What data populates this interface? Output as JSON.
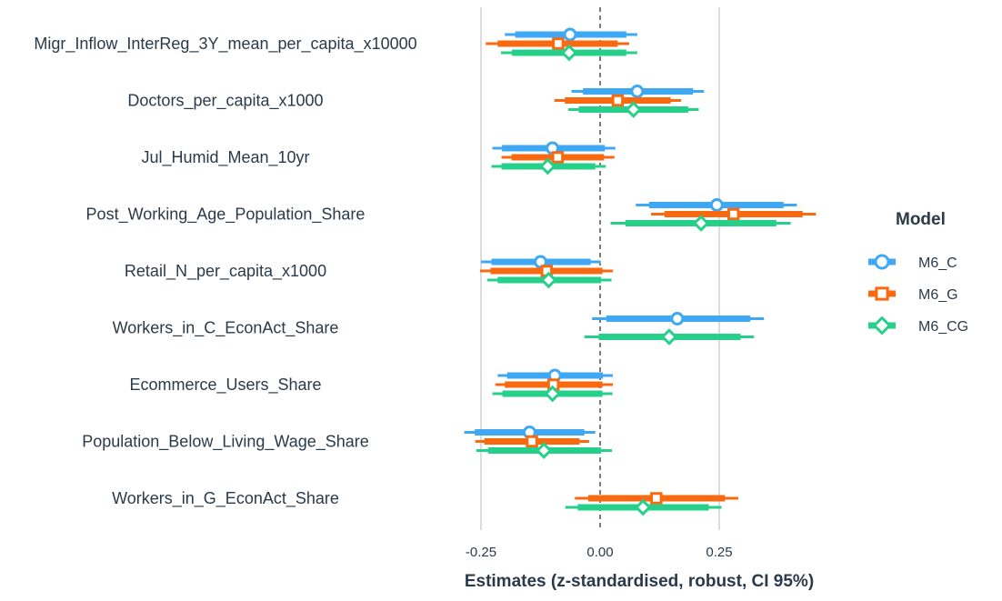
{
  "chart_data": {
    "type": "forest",
    "xlabel": "Estimates (z-standardised, robust, CI 95%)",
    "xticks": [
      -0.25,
      0,
      0.25
    ],
    "xtick_labels": [
      "-0.25",
      "0.00",
      "0.25"
    ],
    "xlim": [
      -0.3,
      0.48
    ],
    "gridlines": [
      -0.25,
      0.25
    ],
    "zero_line": 0,
    "legend": {
      "title": "Model",
      "position": "right"
    },
    "terms": [
      "Migr_Inflow_InterReg_3Y_mean_per_capita_x10000",
      "Doctors_per_capita_x1000",
      "Jul_Humid_Mean_10yr",
      "Post_Working_Age_Population_Share",
      "Retail_N_per_capita_x1000",
      "Workers_in_C_EconAct_Share",
      "Ecommerce_Users_Share",
      "Population_Below_Living_Wage_Share",
      "Workers_in_G_EconAct_Share"
    ],
    "series": [
      {
        "name": "M6_C",
        "color": "#3fa8f4",
        "marker": "circle",
        "points": [
          {
            "term": "Migr_Inflow_InterReg_3Y_mean_per_capita_x10000",
            "estimate": -0.063,
            "ci_inner": [
              -0.178,
              0.055
            ],
            "ci_outer": [
              -0.2,
              0.078
            ]
          },
          {
            "term": "Doctors_per_capita_x1000",
            "estimate": 0.078,
            "ci_inner": [
              -0.036,
              0.195
            ],
            "ci_outer": [
              -0.06,
              0.218
            ]
          },
          {
            "term": "Jul_Humid_Mean_10yr",
            "estimate": -0.1,
            "ci_inner": [
              -0.206,
              0.01
            ],
            "ci_outer": [
              -0.226,
              0.032
            ]
          },
          {
            "term": "Post_Working_Age_Population_Share",
            "estimate": 0.245,
            "ci_inner": [
              0.103,
              0.385
            ],
            "ci_outer": [
              0.075,
              0.413
            ]
          },
          {
            "term": "Retail_N_per_capita_x1000",
            "estimate": -0.125,
            "ci_inner": [
              -0.228,
              -0.02
            ],
            "ci_outer": [
              -0.25,
              0.001
            ]
          },
          {
            "term": "Workers_in_C_EconAct_Share",
            "estimate": 0.162,
            "ci_inner": [
              0.013,
              0.315
            ],
            "ci_outer": [
              -0.017,
              0.344
            ]
          },
          {
            "term": "Ecommerce_Users_Share",
            "estimate": -0.095,
            "ci_inner": [
              -0.195,
              0.006
            ],
            "ci_outer": [
              -0.215,
              0.027
            ]
          },
          {
            "term": "Population_Below_Living_Wage_Share",
            "estimate": -0.148,
            "ci_inner": [
              -0.263,
              -0.033
            ],
            "ci_outer": [
              -0.285,
              -0.01
            ]
          }
        ]
      },
      {
        "name": "M6_G",
        "color": "#f96a10",
        "marker": "square",
        "points": [
          {
            "term": "Migr_Inflow_InterReg_3Y_mean_per_capita_x10000",
            "estimate": -0.088,
            "ci_inner": [
              -0.215,
              0.037
            ],
            "ci_outer": [
              -0.24,
              0.061
            ]
          },
          {
            "term": "Doctors_per_capita_x1000",
            "estimate": 0.037,
            "ci_inner": [
              -0.074,
              0.148
            ],
            "ci_outer": [
              -0.096,
              0.17
            ]
          },
          {
            "term": "Jul_Humid_Mean_10yr",
            "estimate": -0.089,
            "ci_inner": [
              -0.186,
              0.008
            ],
            "ci_outer": [
              -0.207,
              0.03
            ]
          },
          {
            "term": "Post_Working_Age_Population_Share",
            "estimate": 0.28,
            "ci_inner": [
              0.135,
              0.425
            ],
            "ci_outer": [
              0.107,
              0.453
            ]
          },
          {
            "term": "Retail_N_per_capita_x1000",
            "estimate": -0.112,
            "ci_inner": [
              -0.23,
              0.005
            ],
            "ci_outer": [
              -0.252,
              0.027
            ]
          },
          {
            "term": "Ecommerce_Users_Share",
            "estimate": -0.098,
            "ci_inner": [
              -0.2,
              0.005
            ],
            "ci_outer": [
              -0.22,
              0.027
            ]
          },
          {
            "term": "Population_Below_Living_Wage_Share",
            "estimate": -0.143,
            "ci_inner": [
              -0.243,
              -0.043
            ],
            "ci_outer": [
              -0.262,
              -0.023
            ]
          },
          {
            "term": "Workers_in_G_EconAct_Share",
            "estimate": 0.118,
            "ci_inner": [
              -0.025,
              0.262
            ],
            "ci_outer": [
              -0.053,
              0.29
            ]
          }
        ]
      },
      {
        "name": "M6_CG",
        "color": "#27d08a",
        "marker": "diamond",
        "points": [
          {
            "term": "Migr_Inflow_InterReg_3Y_mean_per_capita_x10000",
            "estimate": -0.065,
            "ci_inner": [
              -0.185,
              0.055
            ],
            "ci_outer": [
              -0.208,
              0.078
            ]
          },
          {
            "term": "Doctors_per_capita_x1000",
            "estimate": 0.07,
            "ci_inner": [
              -0.045,
              0.185
            ],
            "ci_outer": [
              -0.067,
              0.207
            ]
          },
          {
            "term": "Jul_Humid_Mean_10yr",
            "estimate": -0.11,
            "ci_inner": [
              -0.207,
              -0.01
            ],
            "ci_outer": [
              -0.228,
              0.012
            ]
          },
          {
            "term": "Post_Working_Age_Population_Share",
            "estimate": 0.212,
            "ci_inner": [
              0.053,
              0.37
            ],
            "ci_outer": [
              0.022,
              0.4
            ]
          },
          {
            "term": "Retail_N_per_capita_x1000",
            "estimate": -0.108,
            "ci_inner": [
              -0.215,
              0.002
            ],
            "ci_outer": [
              -0.237,
              0.024
            ]
          },
          {
            "term": "Workers_in_C_EconAct_Share",
            "estimate": 0.145,
            "ci_inner": [
              -0.003,
              0.295
            ],
            "ci_outer": [
              -0.033,
              0.323
            ]
          },
          {
            "term": "Ecommerce_Users_Share",
            "estimate": -0.1,
            "ci_inner": [
              -0.205,
              0.005
            ],
            "ci_outer": [
              -0.226,
              0.026
            ]
          },
          {
            "term": "Population_Below_Living_Wage_Share",
            "estimate": -0.118,
            "ci_inner": [
              -0.235,
              0.002
            ],
            "ci_outer": [
              -0.26,
              0.025
            ]
          },
          {
            "term": "Workers_in_G_EconAct_Share",
            "estimate": 0.09,
            "ci_inner": [
              -0.047,
              0.228
            ],
            "ci_outer": [
              -0.073,
              0.255
            ]
          }
        ]
      }
    ]
  }
}
